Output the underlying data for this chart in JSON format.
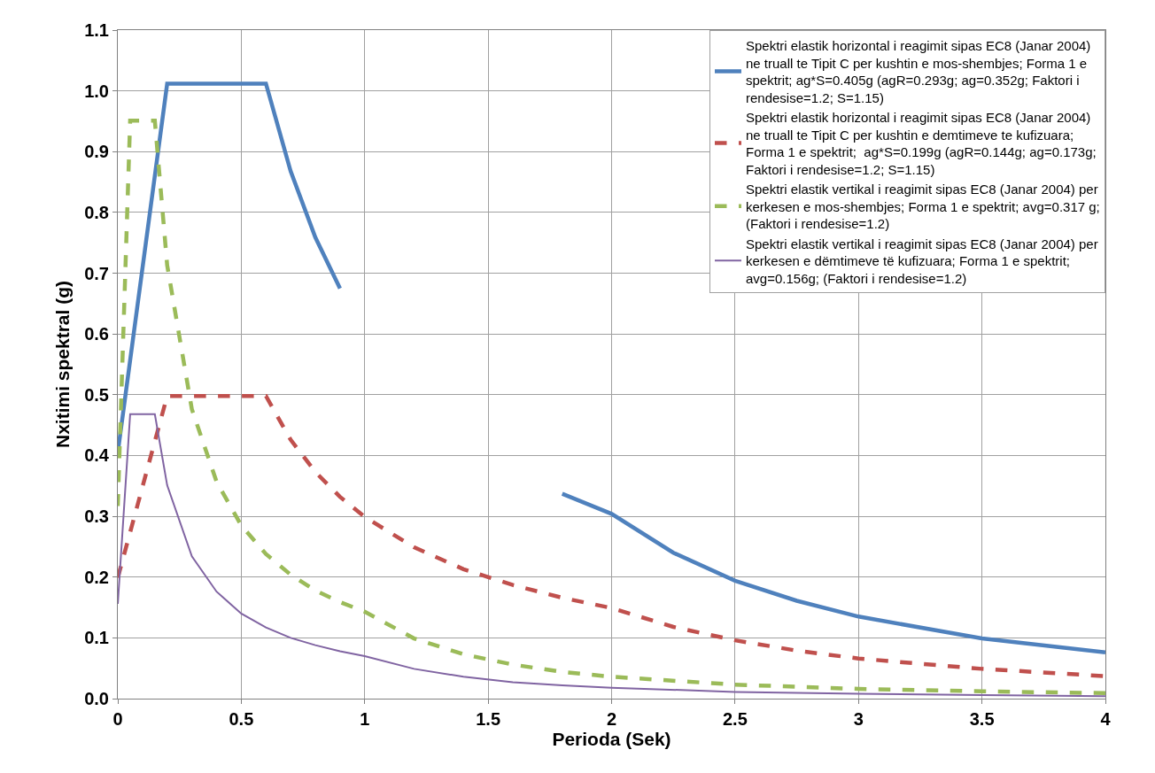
{
  "chart_data": {
    "type": "line",
    "xlabel": "Perioda (Sek)",
    "ylabel": "Nxitimi spektral (g)",
    "xlim": [
      0,
      4
    ],
    "xticks": [
      0,
      0.5,
      1,
      1.5,
      2,
      2.5,
      3,
      3.5,
      4
    ],
    "ylim": [
      0,
      1.1
    ],
    "yticks": [
      {
        "value": 0,
        "label": "0.0"
      },
      0.1,
      0.2,
      0.3,
      0.4,
      0.5,
      0.6,
      0.7,
      0.8,
      0.9,
      {
        "value": 1,
        "label": "1.0"
      },
      1.1
    ],
    "grid": true,
    "legend": "top right",
    "marker": "none",
    "series": [
      {
        "name": "Spektri elastik horizontal i reagimit sipas EC8 (Janar 2004) ne truall te Tipit C per kushtin e mos-shembjes; Forma 1 e spektrit; ag*S=0.405g (agR=0.293g; ag=0.352g; Faktori i rendesise=1.2; S=1.15)",
        "color": "#4f81bd",
        "line_style": "solid",
        "x": [
          0,
          0.2,
          0.6,
          0.7,
          0.8,
          0.9,
          1.0,
          1.1,
          1.2,
          1.4,
          1.6,
          1.8,
          2.0,
          2.25,
          2.5,
          2.75,
          3,
          3.5,
          4
        ],
        "values": [
          0.405,
          1.012,
          1.012,
          0.868,
          0.759,
          0.675,
          null,
          null,
          null,
          null,
          null,
          0.337,
          0.304,
          0.24,
          0.194,
          0.161,
          0.135,
          0.099,
          0.076
        ]
      },
      {
        "name": "Spektri elastik horizontal i reagimit sipas EC8 (Janar 2004) ne truall te Tipit C per kushtin e demtimeve te kufizuara; Forma 1 e spektrit;  ag*S=0.199g (agR=0.144g; ag=0.173g; Faktori i rendesise=1.2; S=1.15)",
        "color": "#c0504d",
        "line_style": "dashed",
        "x": [
          0,
          0.2,
          0.6,
          0.7,
          0.8,
          0.9,
          1.0,
          1.2,
          1.4,
          1.6,
          1.8,
          2.0,
          2.25,
          2.5,
          2.75,
          3,
          3.5,
          4
        ],
        "values": [
          0.199,
          0.498,
          0.498,
          0.426,
          0.373,
          0.332,
          0.299,
          0.249,
          0.213,
          0.187,
          0.166,
          0.149,
          0.118,
          0.096,
          0.079,
          0.066,
          0.049,
          0.037
        ]
      },
      {
        "name": "Spektri elastik vertikal i reagimit sipas EC8 (Janar 2004) per kerkesen e mos-shembjes; Forma 1 e spektrit; avg=0.317 g; (Faktori i rendesise=1.2)",
        "color": "#9bbb59",
        "line_style": "dashed",
        "x": [
          0,
          0.05,
          0.15,
          0.2,
          0.3,
          0.4,
          0.5,
          0.6,
          0.7,
          0.8,
          0.9,
          1.0,
          1.2,
          1.4,
          1.6,
          1.8,
          2.0,
          2.5,
          3,
          3.5,
          4
        ],
        "values": [
          0.317,
          0.951,
          0.951,
          0.713,
          0.476,
          0.357,
          0.285,
          0.238,
          0.204,
          0.178,
          0.159,
          0.143,
          0.099,
          0.073,
          0.056,
          0.044,
          0.036,
          0.023,
          0.016,
          0.012,
          0.009
        ]
      },
      {
        "name": "Spektri elastik vertikal i reagimit sipas EC8 (Janar 2004) per kerkesen e dëmtimeve të kufizuara; Forma 1 e spektrit; avg=0.156g; (Faktori i rendesise=1.2)",
        "color": "#8064a2",
        "line_style": "solid",
        "x": [
          0,
          0.05,
          0.15,
          0.2,
          0.3,
          0.4,
          0.5,
          0.6,
          0.7,
          0.8,
          0.9,
          1.0,
          1.2,
          1.4,
          1.6,
          1.8,
          2.0,
          2.5,
          3,
          3.5,
          4
        ],
        "values": [
          0.156,
          0.468,
          0.468,
          0.351,
          0.234,
          0.176,
          0.14,
          0.117,
          0.1,
          0.088,
          0.078,
          0.07,
          0.049,
          0.036,
          0.027,
          0.022,
          0.018,
          0.011,
          0.008,
          0.006,
          0.004
        ]
      }
    ]
  }
}
